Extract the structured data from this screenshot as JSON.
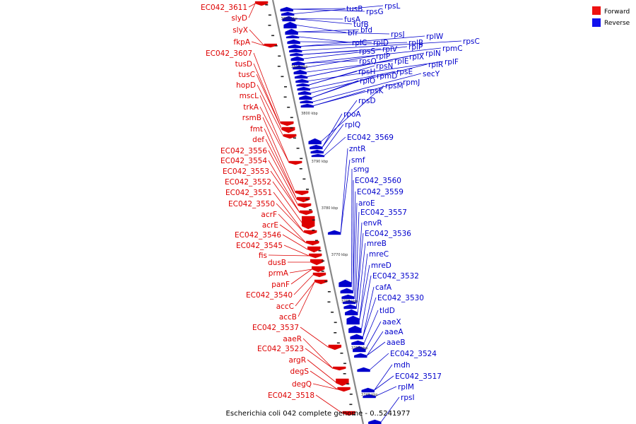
{
  "caption": "Escherichia coli 042 complete genome - 0..5241977",
  "legend": [
    {
      "label": "Forward",
      "color": "#ee1111"
    },
    {
      "label": "Reverse",
      "color": "#1111ee"
    }
  ],
  "colors": {
    "forward": "#dd0000",
    "reverse": "#0000cc",
    "backbone": "#888888"
  },
  "ticks": [
    "3820 kbp",
    "3810 kbp",
    "3800 kbp",
    "3790 kbp",
    "3780 kbp",
    "3770 kbp",
    "3760 kbp",
    "3750 kbp",
    "3740 kbp"
  ],
  "forward_genes": [
    "EC042_3611",
    "slyD",
    "slyX",
    "fkpA",
    "EC042_3607",
    "tusD",
    "tusC",
    "hopD",
    "mscL",
    "trkA",
    "rsmB",
    "fmt",
    "def",
    "EC042_3556",
    "EC042_3554",
    "EC042_3553",
    "EC042_3552",
    "EC042_3551",
    "EC042_3550",
    "acrF",
    "acrE",
    "EC042_3546",
    "EC042_3545",
    "fis",
    "dusB",
    "prmA",
    "panF",
    "EC042_3540",
    "accC",
    "accB",
    "EC042_3537",
    "aaeR",
    "EC042_3523",
    "argR",
    "degS",
    "degQ",
    "EC042_3518"
  ],
  "reverse_genes": [
    "tusB",
    "rpsG",
    "rpsL",
    "fusA",
    "tufB",
    "bfr",
    "bfd",
    "rpsJ",
    "rplC",
    "rplD",
    "rplB",
    "rplW",
    "rpsC",
    "rpsS",
    "rplV",
    "rplP",
    "rpmC",
    "rpsQ",
    "rplP",
    "rplE",
    "rplX",
    "rplN",
    "rplF",
    "rpsH",
    "rpsN",
    "rpsE",
    "rplR",
    "rplO",
    "rpmD",
    "secY",
    "rpmJ",
    "rpsK",
    "rpsM",
    "rpsD",
    "rpoA",
    "rplQ",
    "EC042_3569",
    "zntR",
    "smf",
    "smg",
    "EC042_3560",
    "EC042_3559",
    "aroE",
    "EC042_3557",
    "envR",
    "EC042_3536",
    "mreB",
    "mreC",
    "mreD",
    "EC042_3532",
    "cafA",
    "EC042_3530",
    "tldD",
    "aaeX",
    "aaeA",
    "aaeB",
    "EC042_3524",
    "mdh",
    "EC042_3517",
    "rplM",
    "rpsI"
  ]
}
